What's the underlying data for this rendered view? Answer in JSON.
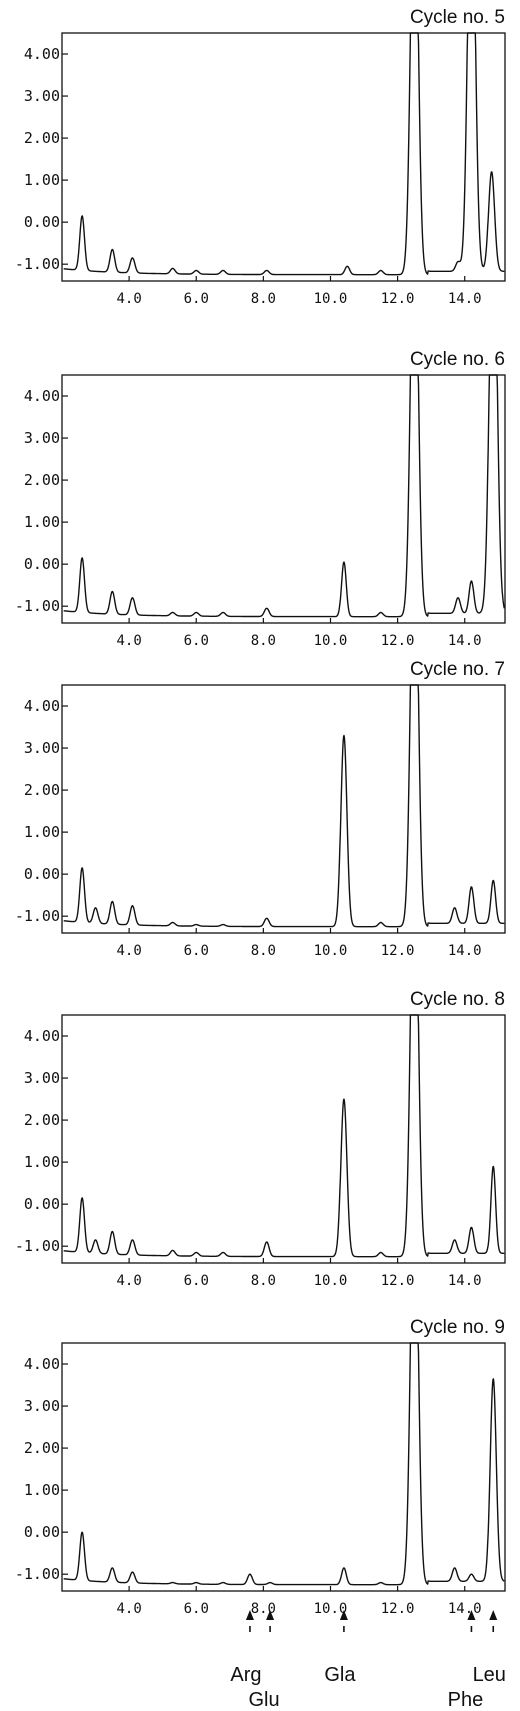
{
  "chart_data": [
    {
      "type": "line",
      "title": "Cycle no. 5",
      "xlim": [
        2.0,
        15.2
      ],
      "ylim": [
        -1.4,
        4.5
      ],
      "yticks": [
        "4.00",
        "3.00",
        "2.00",
        "1.00",
        "0.00",
        "-1.00"
      ],
      "xticks": [
        "4.0",
        "6.0",
        "8.0",
        "10.0",
        "12.0",
        "14.0"
      ],
      "peaks": [
        {
          "x": 2.6,
          "y": 0.15
        },
        {
          "x": 3.5,
          "y": -0.65
        },
        {
          "x": 4.1,
          "y": -0.85
        },
        {
          "x": 5.3,
          "y": -1.1
        },
        {
          "x": 6.0,
          "y": -1.15
        },
        {
          "x": 6.8,
          "y": -1.15
        },
        {
          "x": 8.1,
          "y": -1.15
        },
        {
          "x": 10.5,
          "y": -1.05
        },
        {
          "x": 11.5,
          "y": -1.15
        },
        {
          "x": 12.5,
          "y": 4.5
        },
        {
          "x": 13.8,
          "y": -0.95
        },
        {
          "x": 14.2,
          "y": 4.5
        },
        {
          "x": 14.8,
          "y": 1.2
        }
      ]
    },
    {
      "type": "line",
      "title": "Cycle no. 6",
      "xlim": [
        2.0,
        15.2
      ],
      "ylim": [
        -1.4,
        4.5
      ],
      "yticks": [
        "4.00",
        "3.00",
        "2.00",
        "1.00",
        "0.00",
        "-1.00"
      ],
      "xticks": [
        "4.0",
        "6.0",
        "8.0",
        "10.0",
        "12.0",
        "14.0"
      ],
      "peaks": [
        {
          "x": 2.6,
          "y": 0.15
        },
        {
          "x": 3.5,
          "y": -0.65
        },
        {
          "x": 4.1,
          "y": -0.8
        },
        {
          "x": 5.3,
          "y": -1.15
        },
        {
          "x": 6.0,
          "y": -1.15
        },
        {
          "x": 6.8,
          "y": -1.15
        },
        {
          "x": 8.1,
          "y": -1.05
        },
        {
          "x": 10.4,
          "y": 0.05
        },
        {
          "x": 11.5,
          "y": -1.15
        },
        {
          "x": 12.5,
          "y": 4.5
        },
        {
          "x": 13.8,
          "y": -0.8
        },
        {
          "x": 14.2,
          "y": -0.4
        },
        {
          "x": 14.85,
          "y": 4.5
        }
      ]
    },
    {
      "type": "line",
      "title": "Cycle no. 7",
      "xlim": [
        2.0,
        15.2
      ],
      "ylim": [
        -1.4,
        4.5
      ],
      "yticks": [
        "4.00",
        "3.00",
        "2.00",
        "1.00",
        "0.00",
        "-1.00"
      ],
      "xticks": [
        "4.0",
        "6.0",
        "8.0",
        "10.0",
        "12.0",
        "14.0"
      ],
      "peaks": [
        {
          "x": 2.6,
          "y": 0.15
        },
        {
          "x": 3.0,
          "y": -0.8
        },
        {
          "x": 3.5,
          "y": -0.65
        },
        {
          "x": 4.1,
          "y": -0.75
        },
        {
          "x": 5.3,
          "y": -1.15
        },
        {
          "x": 6.0,
          "y": -1.2
        },
        {
          "x": 6.8,
          "y": -1.2
        },
        {
          "x": 8.1,
          "y": -1.05
        },
        {
          "x": 10.4,
          "y": 3.3
        },
        {
          "x": 11.5,
          "y": -1.15
        },
        {
          "x": 12.5,
          "y": 4.5
        },
        {
          "x": 13.7,
          "y": -0.8
        },
        {
          "x": 14.2,
          "y": -0.3
        },
        {
          "x": 14.85,
          "y": -0.15
        }
      ]
    },
    {
      "type": "line",
      "title": "Cycle no. 8",
      "xlim": [
        2.0,
        15.2
      ],
      "ylim": [
        -1.4,
        4.5
      ],
      "yticks": [
        "4.00",
        "3.00",
        "2.00",
        "1.00",
        "0.00",
        "-1.00"
      ],
      "xticks": [
        "4.0",
        "6.0",
        "8.0",
        "10.0",
        "12.0",
        "14.0"
      ],
      "peaks": [
        {
          "x": 2.6,
          "y": 0.15
        },
        {
          "x": 3.0,
          "y": -0.85
        },
        {
          "x": 3.5,
          "y": -0.65
        },
        {
          "x": 4.1,
          "y": -0.85
        },
        {
          "x": 5.3,
          "y": -1.1
        },
        {
          "x": 6.0,
          "y": -1.15
        },
        {
          "x": 6.8,
          "y": -1.15
        },
        {
          "x": 8.1,
          "y": -0.9
        },
        {
          "x": 10.4,
          "y": 2.5
        },
        {
          "x": 11.5,
          "y": -1.15
        },
        {
          "x": 12.5,
          "y": 4.5
        },
        {
          "x": 13.7,
          "y": -0.85
        },
        {
          "x": 14.2,
          "y": -0.55
        },
        {
          "x": 14.85,
          "y": 0.9
        }
      ]
    },
    {
      "type": "line",
      "title": "Cycle no. 9",
      "xlim": [
        2.0,
        15.2
      ],
      "ylim": [
        -1.4,
        4.5
      ],
      "yticks": [
        "4.00",
        "3.00",
        "2.00",
        "1.00",
        "0.00",
        "-1.00"
      ],
      "xticks": [
        "4.0",
        "6.0",
        "8.0",
        "10.0",
        "12.0",
        "14.0"
      ],
      "peaks": [
        {
          "x": 2.6,
          "y": 0.0
        },
        {
          "x": 3.5,
          "y": -0.85
        },
        {
          "x": 4.1,
          "y": -0.95
        },
        {
          "x": 5.3,
          "y": -1.2
        },
        {
          "x": 6.0,
          "y": -1.2
        },
        {
          "x": 6.8,
          "y": -1.2
        },
        {
          "x": 7.6,
          "y": -1.0
        },
        {
          "x": 8.2,
          "y": -1.2
        },
        {
          "x": 10.4,
          "y": -0.85
        },
        {
          "x": 11.5,
          "y": -1.2
        },
        {
          "x": 12.5,
          "y": 4.5
        },
        {
          "x": 13.7,
          "y": -0.85
        },
        {
          "x": 14.2,
          "y": -1.0
        },
        {
          "x": 14.85,
          "y": 3.65
        }
      ]
    }
  ],
  "markers": [
    {
      "x": 7.6,
      "label": "Arg",
      "row": 1
    },
    {
      "x": 8.2,
      "label": "Glu",
      "row": 2
    },
    {
      "x": 10.4,
      "label": "Gla",
      "row": 1
    },
    {
      "x": 14.2,
      "label": "Phe",
      "row": 2
    },
    {
      "x": 14.85,
      "label": "Leu",
      "row": 1
    }
  ]
}
